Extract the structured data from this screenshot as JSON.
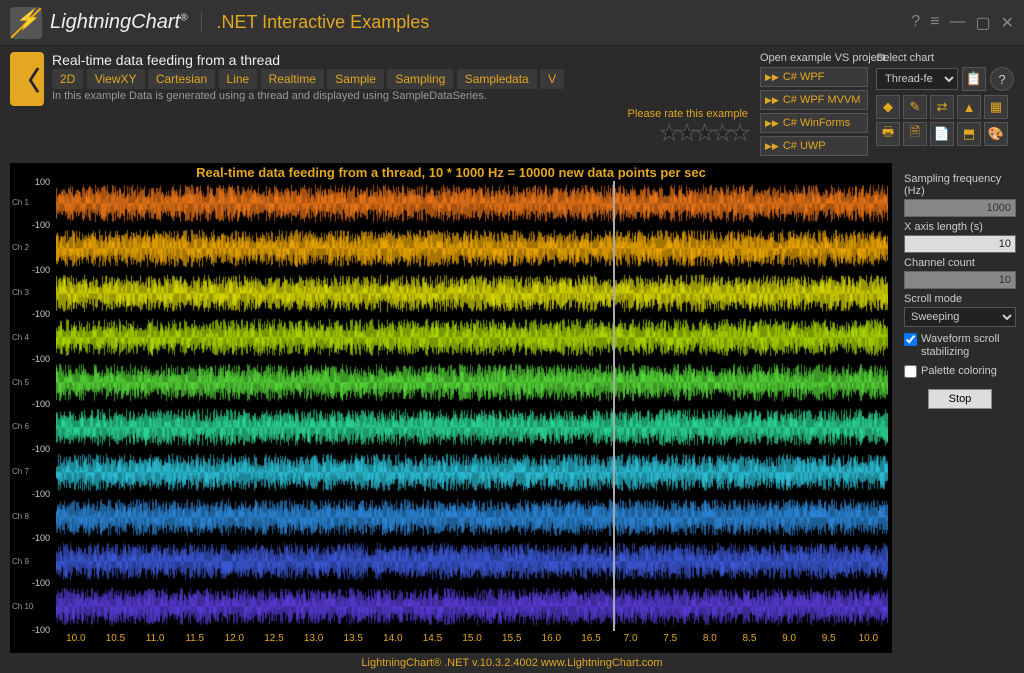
{
  "app": {
    "brand": "LightningChart",
    "reg": "®",
    "subtitle": ".NET Interactive Examples",
    "window_controls": [
      "?",
      "≡",
      "—",
      "▢",
      "✕"
    ]
  },
  "header": {
    "example_title": "Real-time data feeding from a thread",
    "tags": [
      "2D",
      "ViewXY",
      "Cartesian",
      "Line",
      "Realtime",
      "Sample",
      "Sampling",
      "Sampledata",
      "V"
    ],
    "description": "In this example Data is generated using a thread and displayed using SampleDataSeries.",
    "rate_label": "Please rate this example",
    "stars": "★★★★★",
    "vs_label": "Open example VS project:",
    "vs_buttons": [
      "C# WPF",
      "C# WPF MVVM",
      "C# WinForms",
      "C# UWP"
    ],
    "select_label": "Select chart",
    "select_value": "Thread-fe",
    "icon_buttons_top": [
      "📋",
      "?"
    ],
    "icon_buttons": [
      "◆",
      "✎",
      "⇄",
      "▲",
      "▦",
      "🖶",
      "🗎",
      "📄",
      "⬒",
      "🎨"
    ]
  },
  "chart": {
    "title": "Real-time data feeding from a thread, 10 * 1000 Hz = 10000 new data points per sec",
    "channel_count": 10,
    "channel_labels": [
      "Ch 1",
      "Ch 2",
      "Ch 3",
      "Ch 4",
      "Ch 5",
      "Ch 6",
      "Ch 7",
      "Ch 8",
      "Ch 9",
      "Ch 10"
    ],
    "y_top": "100",
    "y_mid": "-100",
    "y_bottom": "-100",
    "colors": [
      "#ff7f1a",
      "#ffb300",
      "#e8e800",
      "#b8e800",
      "#5ce83c",
      "#2ee8a0",
      "#2ed0e8",
      "#2e90e8",
      "#4060e8",
      "#6040e8"
    ],
    "x_ticks_left": [
      "10.0",
      "10.5",
      "11.0",
      "11.5",
      "12.0",
      "12.5",
      "13.0",
      "13.5",
      "14.0",
      "14.5",
      "15.0",
      "15.5",
      "16.0",
      "16.5"
    ],
    "x_ticks_right": [
      "7.0",
      "7.5",
      "8.0",
      "8.5",
      "9.0",
      "9.5",
      "10.0"
    ],
    "sweep_position_pct": 67,
    "bg": "#000000"
  },
  "controls": {
    "sampling_freq_label": "Sampling frequency (Hz)",
    "sampling_freq_value": "1000",
    "xaxis_len_label": "X axis length (s)",
    "xaxis_len_value": "10",
    "channel_count_label": "Channel count",
    "channel_count_value": "10",
    "scroll_mode_label": "Scroll mode",
    "scroll_mode_value": "Sweeping",
    "waveform_scroll_label": "Waveform scroll stabilizing",
    "waveform_scroll_checked": true,
    "palette_label": "Palette coloring",
    "palette_checked": false,
    "stop_label": "Stop"
  },
  "footer": {
    "text": "LightningChart® .NET v.10.3.2.4002  www.LightningChart.com"
  }
}
